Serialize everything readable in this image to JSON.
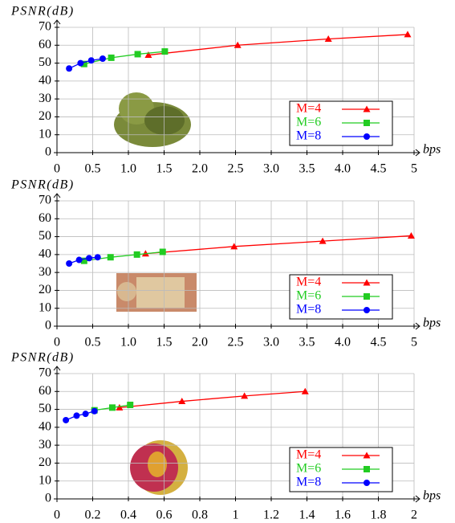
{
  "chart_data": [
    {
      "type": "line",
      "ylabel": "PSNR(dB)",
      "xlabel": "bps",
      "xlim": [
        0,
        5
      ],
      "ylim": [
        0,
        70
      ],
      "xticks": [
        0,
        0.5,
        {
          "value": 1,
          "label": "1.0"
        },
        1.5,
        {
          "value": 2,
          "label": "2.0"
        },
        2.5,
        {
          "value": 3,
          "label": "3.0"
        },
        3.5,
        {
          "value": 4,
          "label": "4.0"
        },
        4.5,
        5
      ],
      "yticks": [
        0,
        10,
        20,
        30,
        40,
        50,
        60,
        70
      ],
      "grid": true,
      "legend": "lower right",
      "series": [
        {
          "name": "M=4",
          "color": "#ff0000",
          "marker": "triangle",
          "x": [
            1.28,
            2.53,
            3.8,
            4.91
          ],
          "values": [
            54.5,
            60,
            63.5,
            66
          ]
        },
        {
          "name": "M=6",
          "color": "#22cc22",
          "marker": "square",
          "x": [
            0.38,
            0.76,
            1.13,
            1.51
          ],
          "values": [
            49.5,
            53,
            55,
            56.5
          ]
        },
        {
          "name": "M=8",
          "color": "#0000ff",
          "marker": "circle",
          "x": [
            0.17,
            0.33,
            0.48,
            0.64
          ],
          "values": [
            47,
            50,
            51.5,
            52.5
          ]
        }
      ]
    },
    {
      "type": "line",
      "ylabel": "PSNR(dB)",
      "xlabel": "bps",
      "xlim": [
        0,
        5
      ],
      "ylim": [
        0,
        70
      ],
      "xticks": [
        0,
        0.5,
        {
          "value": 1,
          "label": "1.0"
        },
        1.5,
        {
          "value": 2,
          "label": "2.0"
        },
        2.5,
        {
          "value": 3,
          "label": "3.0"
        },
        3.5,
        {
          "value": 4,
          "label": "4.0"
        },
        4.5,
        5
      ],
      "yticks": [
        0,
        10,
        20,
        30,
        40,
        50,
        60,
        70
      ],
      "grid": true,
      "legend": "lower right",
      "series": [
        {
          "name": "M=4",
          "color": "#ff0000",
          "marker": "triangle",
          "x": [
            1.24,
            2.48,
            3.72,
            4.96
          ],
          "values": [
            40.5,
            44.5,
            47.5,
            50.5
          ]
        },
        {
          "name": "M=6",
          "color": "#22cc22",
          "marker": "square",
          "x": [
            0.38,
            0.75,
            1.12,
            1.48
          ],
          "values": [
            36.5,
            38.5,
            40,
            41.5
          ]
        },
        {
          "name": "M=8",
          "color": "#0000ff",
          "marker": "circle",
          "x": [
            0.17,
            0.31,
            0.45,
            0.57
          ],
          "values": [
            35,
            37,
            38,
            38.5
          ]
        }
      ]
    },
    {
      "type": "line",
      "ylabel": "PSNR(dB)",
      "xlabel": "bps",
      "xlim": [
        0,
        2
      ],
      "ylim": [
        0,
        70
      ],
      "xticks": [
        0,
        0.2,
        0.4,
        0.6,
        0.8,
        1,
        1.2,
        1.4,
        1.6,
        1.8,
        2
      ],
      "yticks": [
        0,
        10,
        20,
        30,
        40,
        50,
        60,
        70
      ],
      "grid": true,
      "legend": "lower right",
      "series": [
        {
          "name": "M=4",
          "color": "#ff0000",
          "marker": "triangle",
          "x": [
            0.35,
            0.7,
            1.05,
            1.39
          ],
          "values": [
            51,
            54.5,
            57.5,
            60
          ]
        },
        {
          "name": "M=6",
          "color": "#22cc22",
          "marker": "square",
          "x": [
            0.21,
            0.31,
            0.41
          ],
          "values": [
            49.5,
            51,
            52.5
          ]
        },
        {
          "name": "M=8",
          "color": "#0000ff",
          "marker": "circle",
          "x": [
            0.05,
            0.11,
            0.16,
            0.21
          ],
          "values": [
            44,
            46.5,
            47.5,
            49
          ]
        }
      ]
    }
  ]
}
